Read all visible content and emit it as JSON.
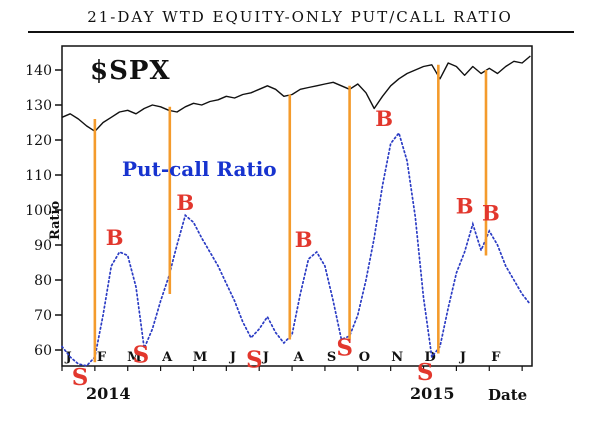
{
  "chart": {
    "title": "21-DAY WTD EQUITY-ONLY PUT/CALL RATIO",
    "spx_label": "$SPX",
    "putcall_label": "Put-call Ratio",
    "y_axis_title": "Ratio",
    "year_left": "2014",
    "year_right": "2015",
    "x_axis_title": "Date",
    "colors": {
      "spx": "#111111",
      "ratio": "#2b3cc4",
      "ratio_label": "#1733cf",
      "signal": "#F49B2C",
      "marker": "#E2372D",
      "frame": "#111111"
    }
  },
  "chart_data": {
    "type": "line",
    "title": "21-DAY WTD EQUITY-ONLY PUT/CALL RATIO",
    "ylabel": "Ratio",
    "xlabel": "Date",
    "ylim": [
      54,
      147
    ],
    "yticks": [
      60,
      70,
      80,
      90,
      100,
      110,
      120,
      130,
      140
    ],
    "x_unit": "months since Jan 2014, sampled quarter-monthly",
    "month_labels": [
      "J",
      "F",
      "M",
      "A",
      "M",
      "J",
      "J",
      "A",
      "S",
      "O",
      "N",
      "D",
      "J",
      "F"
    ],
    "grid": false,
    "legend_position": "none",
    "series": [
      {
        "name": "$SPX (scaled to ratio axis)",
        "style": "solid-black",
        "values": [
          126.5,
          127.5,
          126,
          124,
          122.5,
          125,
          126.5,
          128,
          128.5,
          127.5,
          129,
          130,
          129.5,
          128.5,
          128,
          129.5,
          130.5,
          130,
          131,
          131.5,
          132.5,
          132,
          133,
          133.5,
          134.5,
          135.5,
          134.5,
          132.5,
          133,
          134.5,
          135,
          135.5,
          136,
          136.5,
          135.5,
          134.5,
          136,
          133.5,
          129,
          132.5,
          135.5,
          137.5,
          139,
          140,
          141,
          141.5,
          137.5,
          142,
          141,
          138.5,
          141,
          139,
          140.5,
          139,
          141,
          142.5,
          142,
          144
        ]
      },
      {
        "name": "21-day weighted equity-only put/call ratio",
        "style": "dotted-blue",
        "values": [
          61,
          58,
          56,
          55.5,
          58,
          70,
          84,
          88,
          87,
          78,
          60.5,
          66,
          74,
          81,
          90,
          98.5,
          96.5,
          92,
          88,
          84,
          79,
          74,
          68,
          63.5,
          66,
          69.5,
          65,
          62,
          64.5,
          76,
          86,
          88,
          84,
          74,
          63,
          64,
          70,
          80,
          92,
          107,
          119,
          122,
          114,
          98,
          75,
          58,
          61,
          72,
          82,
          88,
          96,
          88.5,
          94,
          90,
          84,
          80,
          76,
          73
        ]
      }
    ],
    "signal_lines": [
      {
        "month": 1.0,
        "top": 126,
        "bottom": 56.5
      },
      {
        "month": 3.28,
        "top": 129.5,
        "bottom": 76
      },
      {
        "month": 6.93,
        "top": 133,
        "bottom": 63
      },
      {
        "month": 8.75,
        "top": 135.5,
        "bottom": 63
      },
      {
        "month": 11.45,
        "top": 141.5,
        "bottom": 59
      },
      {
        "month": 12.9,
        "top": 140,
        "bottom": 87
      }
    ],
    "markers": [
      {
        "label": "S",
        "month": 0.55,
        "value": 52
      },
      {
        "label": "B",
        "month": 1.6,
        "value": 92
      },
      {
        "label": "S",
        "month": 2.4,
        "value": 58.5
      },
      {
        "label": "B",
        "month": 3.75,
        "value": 102
      },
      {
        "label": "S",
        "month": 5.85,
        "value": 57
      },
      {
        "label": "B",
        "month": 7.35,
        "value": 91.5
      },
      {
        "label": "S",
        "month": 8.6,
        "value": 60.5
      },
      {
        "label": "B",
        "month": 9.8,
        "value": 126
      },
      {
        "label": "S",
        "month": 11.05,
        "value": 53.5
      },
      {
        "label": "B",
        "month": 12.25,
        "value": 101
      },
      {
        "label": "B",
        "month": 13.05,
        "value": 99
      }
    ]
  }
}
